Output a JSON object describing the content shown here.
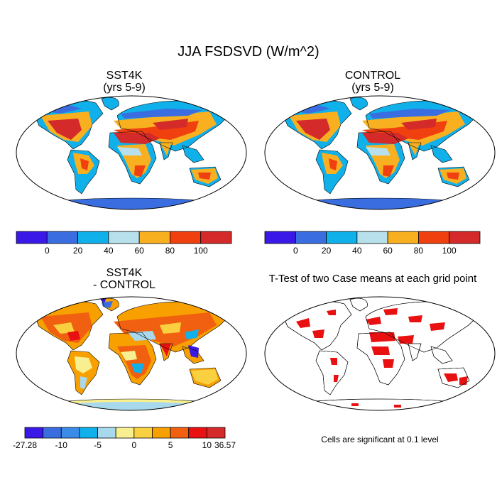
{
  "figure": {
    "title": "JJA FSDSVD (W/m^2)"
  },
  "panels": {
    "sst4k": {
      "title_line1": "SST4K",
      "title_line2": "(yrs 5-9)"
    },
    "control": {
      "title_line1": "CONTROL",
      "title_line2": "(yrs 5-9)"
    },
    "diff": {
      "title_line1": "SST4K",
      "title_line2": "- CONTROL"
    },
    "ttest": {
      "title": "T-Test of two Case means at each grid point",
      "note": "Cells are significant at 0.1 level"
    }
  },
  "colorbars": {
    "main": {
      "colors": [
        "#3a18e8",
        "#3a6ee0",
        "#10b0ea",
        "#b8e0ec",
        "#f8b020",
        "#f04010",
        "#d42a2a"
      ],
      "labels": [
        "0",
        "20",
        "40",
        "60",
        "80",
        "100"
      ]
    },
    "diff": {
      "colors": [
        "#3a18e8",
        "#3a6ee0",
        "#3a8ce8",
        "#10b0ea",
        "#a8d8ec",
        "#f8f090",
        "#f8d040",
        "#f8a000",
        "#f06010",
        "#e81010",
        "#d42a2a"
      ],
      "labels": [
        "-27.28",
        "-10",
        "-5",
        "0",
        "5",
        "10",
        "36.57"
      ]
    }
  },
  "map_colors": {
    "ocean": "#ffffff",
    "antarctica_main": "#3a6ee0",
    "antarctica_diff": "#b8e0ec",
    "antarctica_diff_edge": "#f8f090",
    "significant": "#e81010"
  }
}
